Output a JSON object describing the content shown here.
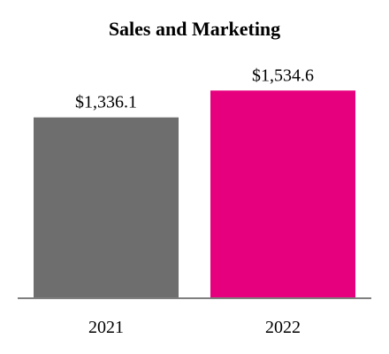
{
  "chart_data": {
    "type": "bar",
    "title": "Sales and Marketing",
    "categories": [
      "2021",
      "2022"
    ],
    "values": [
      1336.1,
      1534.6
    ],
    "data_labels": [
      "$1,336.1",
      "$1,534.6"
    ],
    "bar_colors": [
      "#6e6e6e",
      "#e6007e"
    ],
    "axis_color": "#7f7f7f",
    "xlabel": "",
    "ylabel": "",
    "ylim": [
      0,
      1700
    ],
    "grid": false,
    "legend": "none"
  }
}
